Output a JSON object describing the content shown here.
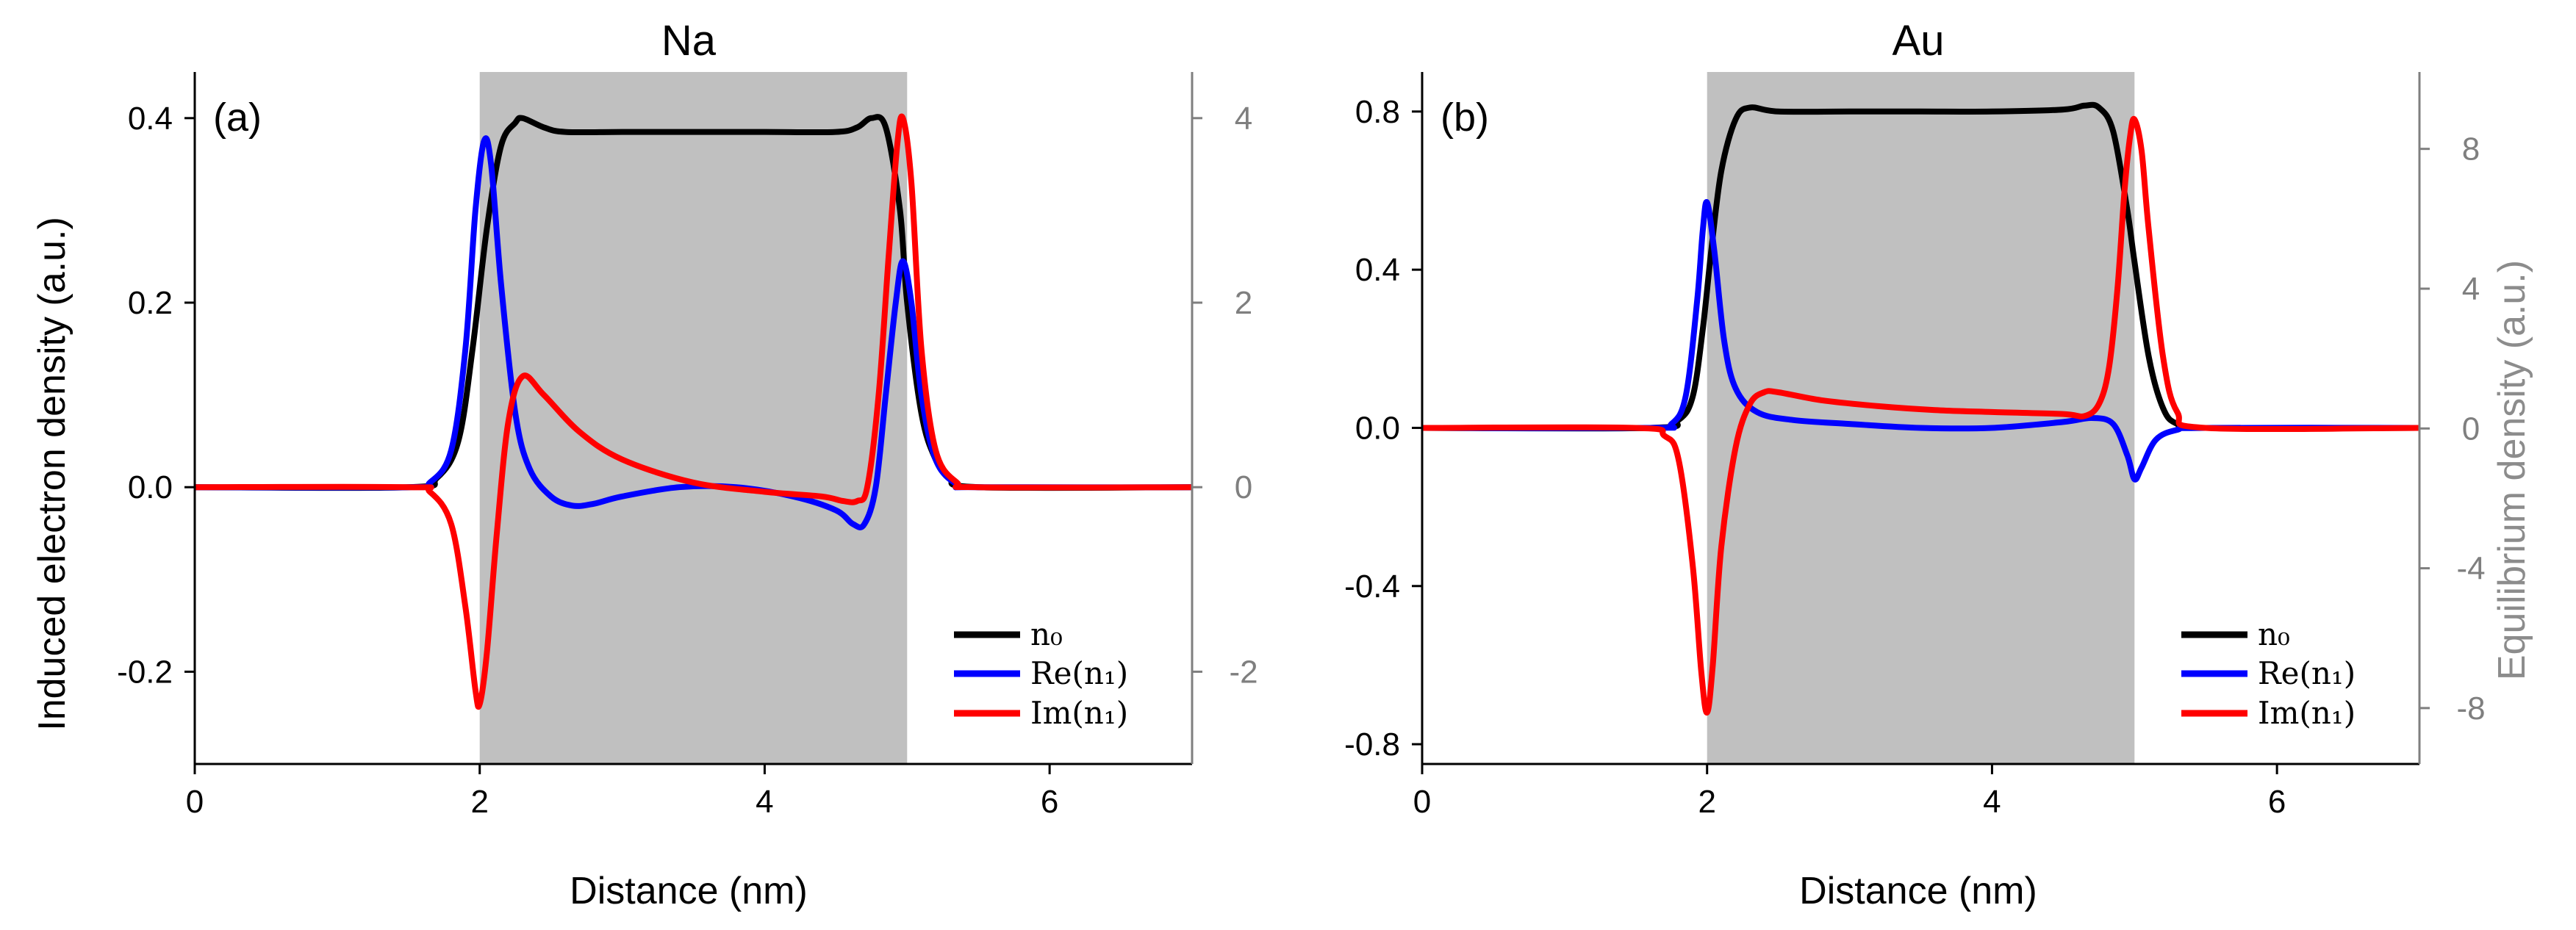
{
  "chart_data": [
    {
      "type": "line",
      "title": "Na",
      "panel_label": "(a)",
      "xlabel": "Distance (nm)",
      "ylabel": "Induced electron density (a.u.)",
      "y2label": "",
      "xlim": [
        0,
        7
      ],
      "ylim": [
        -0.3,
        0.45
      ],
      "y2lim": [
        -3,
        4.5
      ],
      "xticks": [
        0,
        2,
        4,
        6
      ],
      "xtick_labels": [
        "0",
        "2",
        "4",
        "6"
      ],
      "yticks": [
        -0.2,
        0.0,
        0.2,
        0.4
      ],
      "ytick_labels": [
        "-0.2",
        "0.0",
        "0.2",
        "0.4"
      ],
      "y2ticks": [
        -2,
        0,
        2,
        4
      ],
      "y2tick_labels": [
        "-2",
        "0",
        "2",
        "4"
      ],
      "shaded_region": [
        2,
        5
      ],
      "legend": [
        "n0",
        "Re(n1)",
        "Im(n1)"
      ],
      "series": [
        {
          "name": "n0",
          "color": "#000000",
          "axis": "left",
          "x": [
            0,
            1.5,
            1.7,
            1.85,
            1.95,
            2.05,
            2.15,
            2.25,
            2.3,
            2.45,
            2.6,
            3.0,
            3.5,
            4.0,
            4.5,
            4.65,
            4.75,
            4.85,
            4.95,
            5.0,
            5.1,
            5.2,
            5.3,
            5.5,
            7
          ],
          "y": [
            0,
            0,
            0.01,
            0.05,
            0.15,
            0.28,
            0.37,
            0.395,
            0.4,
            0.39,
            0.385,
            0.385,
            0.385,
            0.385,
            0.385,
            0.39,
            0.4,
            0.39,
            0.3,
            0.2,
            0.08,
            0.03,
            0.01,
            0,
            0
          ]
        },
        {
          "name": "Re(n1)",
          "color": "#0000ff",
          "axis": "left",
          "x": [
            0,
            1.5,
            1.65,
            1.8,
            1.9,
            1.97,
            2.03,
            2.08,
            2.15,
            2.25,
            2.35,
            2.5,
            2.65,
            2.8,
            3.0,
            3.4,
            3.8,
            4.2,
            4.5,
            4.62,
            4.7,
            4.78,
            4.85,
            4.92,
            4.97,
            5.03,
            5.1,
            5.2,
            5.35,
            5.5,
            7
          ],
          "y": [
            0,
            0,
            0.005,
            0.04,
            0.15,
            0.3,
            0.375,
            0.35,
            0.22,
            0.08,
            0.02,
            -0.01,
            -0.02,
            -0.018,
            -0.01,
            0.0,
            0.0,
            -0.01,
            -0.025,
            -0.04,
            -0.04,
            0.0,
            0.1,
            0.2,
            0.245,
            0.2,
            0.1,
            0.03,
            0.003,
            0,
            0
          ]
        },
        {
          "name": "Im(n1)",
          "color": "#ff0000",
          "axis": "left",
          "x": [
            0,
            1.5,
            1.65,
            1.8,
            1.9,
            1.97,
            2.0,
            2.05,
            2.12,
            2.2,
            2.3,
            2.45,
            2.7,
            3.0,
            3.5,
            4.0,
            4.4,
            4.55,
            4.65,
            4.72,
            4.8,
            4.87,
            4.93,
            4.97,
            5.03,
            5.1,
            5.2,
            5.35,
            5.5,
            7
          ],
          "y": [
            0,
            0,
            -0.005,
            -0.04,
            -0.13,
            -0.22,
            -0.235,
            -0.18,
            -0.05,
            0.07,
            0.12,
            0.1,
            0.06,
            0.03,
            0.005,
            -0.005,
            -0.01,
            -0.015,
            -0.015,
            0.0,
            0.1,
            0.25,
            0.37,
            0.4,
            0.33,
            0.15,
            0.04,
            0.005,
            0,
            0
          ]
        }
      ]
    },
    {
      "type": "line",
      "title": "Au",
      "panel_label": "(b)",
      "xlabel": "Distance (nm)",
      "ylabel": "",
      "y2label": "Equilibrium density (a.u.)",
      "xlim": [
        0,
        7
      ],
      "ylim": [
        -0.85,
        0.9
      ],
      "y2lim": [
        -9.6,
        10.2
      ],
      "xticks": [
        0,
        2,
        4,
        6
      ],
      "xtick_labels": [
        "0",
        "2",
        "4",
        "6"
      ],
      "yticks": [
        -0.8,
        -0.4,
        0.0,
        0.4,
        0.8
      ],
      "ytick_labels": [
        "-0.8",
        "-0.4",
        "0.0",
        "0.4",
        "0.8"
      ],
      "y2ticks": [
        -8,
        -4,
        0,
        4,
        8
      ],
      "y2tick_labels": [
        "-8",
        "-4",
        "0",
        "4",
        "8"
      ],
      "shaded_region": [
        2,
        5
      ],
      "legend": [
        "n0",
        "Re(n1)",
        "Im(n1)"
      ],
      "series": [
        {
          "name": "n0",
          "color": "#000000",
          "axis": "left",
          "x": [
            0,
            1.6,
            1.8,
            1.9,
            1.97,
            2.03,
            2.1,
            2.2,
            2.3,
            2.5,
            3.0,
            3.5,
            4.0,
            4.5,
            4.65,
            4.75,
            4.85,
            4.95,
            5.0,
            5.1,
            5.2,
            5.3,
            5.5,
            7
          ],
          "y": [
            0,
            0,
            0.02,
            0.08,
            0.25,
            0.45,
            0.65,
            0.78,
            0.81,
            0.8,
            0.8,
            0.8,
            0.8,
            0.805,
            0.815,
            0.81,
            0.75,
            0.55,
            0.42,
            0.18,
            0.05,
            0.01,
            0,
            0
          ]
        },
        {
          "name": "Re(n1)",
          "color": "#0000ff",
          "axis": "left",
          "x": [
            0,
            1.6,
            1.75,
            1.85,
            1.93,
            1.97,
            2.0,
            2.05,
            2.12,
            2.2,
            2.35,
            2.6,
            3.0,
            3.5,
            4.0,
            4.5,
            4.7,
            4.85,
            4.95,
            5.0,
            5.05,
            5.15,
            5.3,
            5.5,
            7
          ],
          "y": [
            0,
            0,
            0.01,
            0.08,
            0.32,
            0.5,
            0.57,
            0.45,
            0.22,
            0.1,
            0.04,
            0.02,
            0.01,
            0.0,
            0.0,
            0.015,
            0.025,
            0.01,
            -0.07,
            -0.13,
            -0.1,
            -0.03,
            -0.005,
            0,
            0
          ]
        },
        {
          "name": "Im(n1)",
          "color": "#ff0000",
          "axis": "left",
          "x": [
            0,
            1.5,
            1.7,
            1.8,
            1.9,
            1.96,
            2.0,
            2.04,
            2.1,
            2.2,
            2.3,
            2.4,
            2.5,
            2.8,
            3.2,
            3.6,
            4.0,
            4.5,
            4.65,
            4.75,
            4.82,
            4.88,
            4.93,
            4.97,
            5.0,
            5.05,
            5.1,
            5.2,
            5.3,
            5.5,
            7
          ],
          "y": [
            0,
            0,
            -0.02,
            -0.08,
            -0.35,
            -0.62,
            -0.72,
            -0.6,
            -0.3,
            -0.05,
            0.06,
            0.09,
            0.09,
            0.07,
            0.055,
            0.045,
            0.04,
            0.035,
            0.03,
            0.06,
            0.15,
            0.35,
            0.6,
            0.74,
            0.78,
            0.7,
            0.5,
            0.18,
            0.04,
            0,
            0
          ]
        }
      ]
    }
  ]
}
